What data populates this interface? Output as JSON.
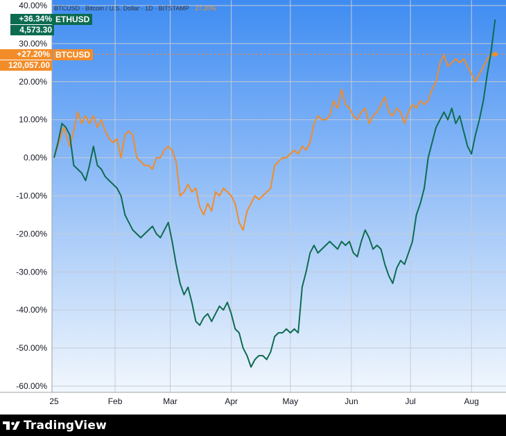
{
  "header": {
    "symbol": "BTCUSD",
    "description": "Bitcoin / U.S. Dollar",
    "interval": "1D",
    "exchange": "BITSTAMP",
    "sep": "·",
    "price_faint": "27.20%"
  },
  "badges": {
    "eth": {
      "pct": "+36.34%",
      "price": "4,573.30",
      "name": "ETHUSD",
      "color": "#0c6b50"
    },
    "btc": {
      "pct": "+27.20%",
      "price": "120,057.00",
      "name": "BTCUSD",
      "color": "#f28c28"
    }
  },
  "footer": {
    "brand": "TradingView"
  },
  "chart_data": {
    "type": "line",
    "ylim": [
      -60,
      40
    ],
    "xlim": [
      0,
      226
    ],
    "y_ticks": [
      "40.00%",
      "30.00%",
      "20.00%",
      "10.00%",
      "0.00%",
      "-10.00%",
      "-20.00%",
      "-30.00%",
      "-40.00%",
      "-50.00%",
      "-60.00%"
    ],
    "y_tick_values": [
      40,
      30,
      20,
      10,
      0,
      -10,
      -20,
      -30,
      -40,
      -50,
      -60
    ],
    "x_ticks": [
      {
        "label": "25",
        "day": 0
      },
      {
        "label": "Feb",
        "day": 31
      },
      {
        "label": "Mar",
        "day": 59
      },
      {
        "label": "Apr",
        "day": 90
      },
      {
        "label": "May",
        "day": 120
      },
      {
        "label": "Jun",
        "day": 151
      },
      {
        "label": "Jul",
        "day": 181
      },
      {
        "label": "Aug",
        "day": 212
      }
    ],
    "grid": true,
    "series": [
      {
        "name": "BTCUSD",
        "color": "#f28c28",
        "points": [
          [
            0,
            0
          ],
          [
            3,
            5
          ],
          [
            5,
            8
          ],
          [
            8,
            3
          ],
          [
            10,
            7
          ],
          [
            12,
            12
          ],
          [
            14,
            9
          ],
          [
            16,
            11
          ],
          [
            18,
            9
          ],
          [
            20,
            11
          ],
          [
            22,
            8
          ],
          [
            24,
            10
          ],
          [
            26,
            7
          ],
          [
            28,
            5
          ],
          [
            30,
            4
          ],
          [
            32,
            5
          ],
          [
            34,
            0
          ],
          [
            36,
            6
          ],
          [
            38,
            7
          ],
          [
            40,
            6
          ],
          [
            42,
            0
          ],
          [
            44,
            -1
          ],
          [
            46,
            -2
          ],
          [
            48,
            -2
          ],
          [
            50,
            -3
          ],
          [
            52,
            0
          ],
          [
            54,
            0
          ],
          [
            56,
            2
          ],
          [
            58,
            3
          ],
          [
            60,
            2
          ],
          [
            62,
            -1
          ],
          [
            64,
            -10
          ],
          [
            66,
            -9
          ],
          [
            68,
            -7
          ],
          [
            70,
            -9
          ],
          [
            72,
            -8
          ],
          [
            74,
            -13
          ],
          [
            76,
            -15
          ],
          [
            78,
            -12
          ],
          [
            80,
            -14
          ],
          [
            82,
            -9
          ],
          [
            84,
            -10
          ],
          [
            86,
            -8
          ],
          [
            88,
            -9
          ],
          [
            90,
            -10
          ],
          [
            92,
            -12
          ],
          [
            94,
            -17
          ],
          [
            96,
            -19
          ],
          [
            98,
            -14
          ],
          [
            100,
            -12
          ],
          [
            102,
            -10
          ],
          [
            104,
            -11
          ],
          [
            106,
            -10
          ],
          [
            108,
            -9
          ],
          [
            110,
            -8
          ],
          [
            112,
            -2
          ],
          [
            114,
            -1
          ],
          [
            116,
            0
          ],
          [
            118,
            0
          ],
          [
            120,
            1
          ],
          [
            122,
            2
          ],
          [
            124,
            1
          ],
          [
            126,
            3
          ],
          [
            128,
            2
          ],
          [
            130,
            4
          ],
          [
            132,
            9
          ],
          [
            134,
            11
          ],
          [
            136,
            10
          ],
          [
            138,
            10
          ],
          [
            140,
            11
          ],
          [
            142,
            15
          ],
          [
            144,
            13
          ],
          [
            146,
            18
          ],
          [
            148,
            14
          ],
          [
            150,
            13
          ],
          [
            152,
            11
          ],
          [
            154,
            10
          ],
          [
            156,
            12
          ],
          [
            158,
            13
          ],
          [
            160,
            9
          ],
          [
            162,
            11
          ],
          [
            164,
            12
          ],
          [
            166,
            14
          ],
          [
            168,
            16
          ],
          [
            170,
            12
          ],
          [
            172,
            11
          ],
          [
            174,
            13
          ],
          [
            176,
            12
          ],
          [
            178,
            9
          ],
          [
            180,
            12
          ],
          [
            182,
            14
          ],
          [
            184,
            13
          ],
          [
            186,
            15
          ],
          [
            188,
            14
          ],
          [
            190,
            15
          ],
          [
            192,
            18
          ],
          [
            194,
            20
          ],
          [
            196,
            25
          ],
          [
            198,
            27
          ],
          [
            200,
            24
          ],
          [
            202,
            25
          ],
          [
            204,
            26
          ],
          [
            206,
            25
          ],
          [
            208,
            26
          ],
          [
            210,
            24
          ],
          [
            212,
            22
          ],
          [
            214,
            20
          ],
          [
            216,
            22
          ],
          [
            218,
            24
          ],
          [
            220,
            26
          ],
          [
            222,
            27
          ],
          [
            224,
            27.2
          ]
        ]
      },
      {
        "name": "ETHUSD",
        "color": "#0c6b50",
        "points": [
          [
            0,
            0
          ],
          [
            2,
            4
          ],
          [
            4,
            9
          ],
          [
            6,
            8
          ],
          [
            8,
            6
          ],
          [
            10,
            -2
          ],
          [
            12,
            -3
          ],
          [
            14,
            -4
          ],
          [
            16,
            -6
          ],
          [
            18,
            -2
          ],
          [
            20,
            3
          ],
          [
            22,
            -2
          ],
          [
            24,
            -3
          ],
          [
            26,
            -5
          ],
          [
            28,
            -6
          ],
          [
            30,
            -7
          ],
          [
            32,
            -8
          ],
          [
            34,
            -10
          ],
          [
            36,
            -15
          ],
          [
            38,
            -17
          ],
          [
            40,
            -19
          ],
          [
            42,
            -20
          ],
          [
            44,
            -21
          ],
          [
            46,
            -20
          ],
          [
            48,
            -19
          ],
          [
            50,
            -18
          ],
          [
            52,
            -20
          ],
          [
            54,
            -21
          ],
          [
            56,
            -19
          ],
          [
            58,
            -17
          ],
          [
            60,
            -22
          ],
          [
            62,
            -28
          ],
          [
            64,
            -33
          ],
          [
            66,
            -36
          ],
          [
            68,
            -34
          ],
          [
            70,
            -38
          ],
          [
            72,
            -43
          ],
          [
            74,
            -44
          ],
          [
            76,
            -42
          ],
          [
            78,
            -41
          ],
          [
            80,
            -43
          ],
          [
            82,
            -41
          ],
          [
            84,
            -39
          ],
          [
            86,
            -40
          ],
          [
            88,
            -38
          ],
          [
            90,
            -41
          ],
          [
            92,
            -45
          ],
          [
            94,
            -46
          ],
          [
            96,
            -50
          ],
          [
            98,
            -52
          ],
          [
            100,
            -55
          ],
          [
            102,
            -53
          ],
          [
            104,
            -52
          ],
          [
            106,
            -52
          ],
          [
            108,
            -53
          ],
          [
            110,
            -51
          ],
          [
            112,
            -47
          ],
          [
            114,
            -46
          ],
          [
            116,
            -46
          ],
          [
            118,
            -45
          ],
          [
            120,
            -46
          ],
          [
            122,
            -45
          ],
          [
            124,
            -46
          ],
          [
            126,
            -34
          ],
          [
            128,
            -30
          ],
          [
            130,
            -25
          ],
          [
            132,
            -23
          ],
          [
            134,
            -25
          ],
          [
            136,
            -24
          ],
          [
            138,
            -23
          ],
          [
            140,
            -22
          ],
          [
            142,
            -23
          ],
          [
            144,
            -24
          ],
          [
            146,
            -22
          ],
          [
            148,
            -23
          ],
          [
            150,
            -22
          ],
          [
            152,
            -25
          ],
          [
            154,
            -26
          ],
          [
            156,
            -22
          ],
          [
            158,
            -19
          ],
          [
            160,
            -21
          ],
          [
            162,
            -24
          ],
          [
            164,
            -23
          ],
          [
            166,
            -24
          ],
          [
            168,
            -28
          ],
          [
            170,
            -31
          ],
          [
            172,
            -33
          ],
          [
            174,
            -29
          ],
          [
            176,
            -27
          ],
          [
            178,
            -28
          ],
          [
            180,
            -25
          ],
          [
            182,
            -22
          ],
          [
            184,
            -15
          ],
          [
            186,
            -12
          ],
          [
            188,
            -8
          ],
          [
            190,
            0
          ],
          [
            192,
            4
          ],
          [
            194,
            8
          ],
          [
            196,
            10
          ],
          [
            198,
            12
          ],
          [
            200,
            10
          ],
          [
            202,
            13
          ],
          [
            204,
            9
          ],
          [
            206,
            11
          ],
          [
            208,
            7
          ],
          [
            210,
            3
          ],
          [
            212,
            1
          ],
          [
            214,
            6
          ],
          [
            216,
            10
          ],
          [
            218,
            15
          ],
          [
            220,
            22
          ],
          [
            222,
            28
          ],
          [
            224,
            36.34
          ]
        ]
      }
    ]
  }
}
